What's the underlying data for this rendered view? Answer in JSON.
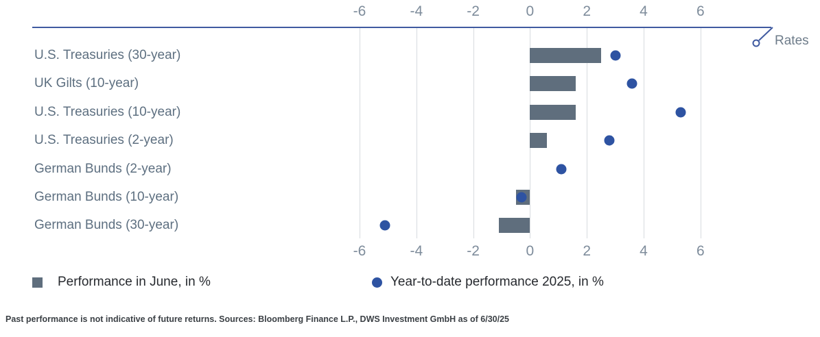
{
  "chart_data": {
    "type": "bar",
    "orientation": "horizontal",
    "title": "",
    "axis_label": "Rates",
    "categories": [
      "U.S. Treasuries (30-year)",
      "UK Gilts (10-year)",
      "U.S. Treasuries (10-year)",
      "U.S. Treasuries (2-year)",
      "German Bunds (2-year)",
      "German Bunds (10-year)",
      "German Bunds (30-year)"
    ],
    "series": [
      {
        "name": "Performance in June, in %",
        "type": "bar",
        "color": "#5f6e7d",
        "values": [
          2.5,
          1.6,
          1.6,
          0.6,
          0.0,
          -0.5,
          -1.1
        ]
      },
      {
        "name": "Year-to-date performance 2025, in %",
        "type": "scatter",
        "color": "#2e53a2",
        "values": [
          3.0,
          3.6,
          5.3,
          2.8,
          1.1,
          -0.3,
          -5.1
        ]
      }
    ],
    "x_ticks": [
      -6,
      -4,
      -2,
      0,
      2,
      4,
      6
    ],
    "xlim": [
      -6,
      6
    ],
    "grid": true,
    "tick_positions": "top and bottom",
    "legend_position": "bottom"
  },
  "footer": {
    "disclaimer": "Past performance is not indicative of future returns. Sources: Bloomberg Finance L.P., DWS Investment GmbH as of 6/30/25"
  },
  "colors": {
    "bar": "#5f6e7d",
    "dot": "#2e53a2",
    "axis_line": "#3f5aa0",
    "gridline": "#d7dbdf",
    "tick_label": "#7e8c9b",
    "category_label": "#5d6f80",
    "legend_text": "#26292e"
  }
}
